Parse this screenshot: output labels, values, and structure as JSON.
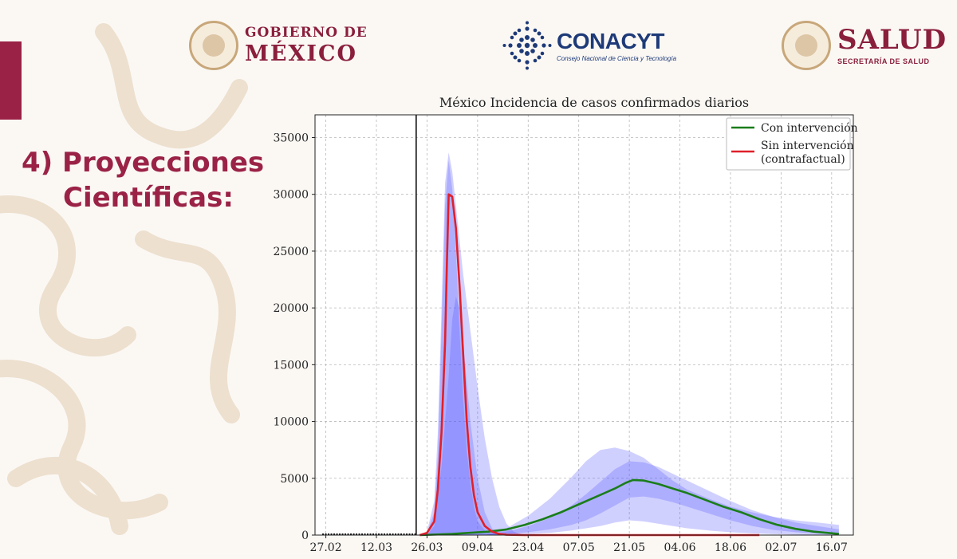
{
  "header": {
    "gob_line1": "GOBIERNO DE",
    "gob_line2": "MÉXICO",
    "conacyt_name": "CONACYT",
    "conacyt_sub": "Consejo Nacional de Ciencia y Tecnología",
    "salud_line1": "SALUD",
    "salud_line2": "SECRETARÍA DE SALUD"
  },
  "slide": {
    "title_line1": "4) Proyecciones",
    "title_line2": "Científicas:"
  },
  "colors": {
    "brand": "#9b2247",
    "con": "#1a7d1a",
    "sin": "#e0202a",
    "band": "#5555ff"
  },
  "chart_data": {
    "type": "line",
    "title": "México Incidencia de casos confirmados diarios",
    "x_ticks": [
      "27.02",
      "12.03",
      "26.03",
      "09.04",
      "23.04",
      "07.05",
      "21.05",
      "04.06",
      "18.06",
      "02.07",
      "16.07"
    ],
    "x_tick_days": [
      0,
      14,
      28,
      42,
      56,
      70,
      84,
      98,
      112,
      126,
      140
    ],
    "xlim": [
      -3,
      146
    ],
    "ylim": [
      0,
      37000
    ],
    "y_ticks": [
      0,
      5000,
      10000,
      15000,
      20000,
      25000,
      30000,
      35000
    ],
    "intervention_day": 25,
    "grid": true,
    "legend_position": "top-right",
    "series": [
      {
        "name": "Con intervención",
        "x": [
          26,
          35,
          45,
          50,
          55,
          60,
          65,
          70,
          75,
          80,
          83,
          85,
          88,
          92,
          96,
          100,
          105,
          110,
          115,
          120,
          125,
          130,
          135,
          142
        ],
        "y": [
          0,
          100,
          300,
          500,
          900,
          1400,
          2000,
          2700,
          3400,
          4100,
          4600,
          4850,
          4800,
          4500,
          4100,
          3700,
          3100,
          2500,
          2000,
          1400,
          900,
          550,
          300,
          100
        ]
      },
      {
        "name": "Sin intervención",
        "label_line1": "Sin intervención",
        "label_line2": "(contrafactual)",
        "x": [
          26,
          28,
          30,
          31,
          32,
          33,
          33.5,
          34,
          35,
          36,
          37,
          38,
          39,
          40,
          41,
          42,
          44,
          46,
          48,
          50,
          55,
          60,
          90,
          120
        ],
        "y": [
          0,
          200,
          1200,
          4000,
          9000,
          17000,
          24000,
          30000,
          29800,
          27000,
          22000,
          16000,
          10000,
          6000,
          3500,
          2000,
          800,
          300,
          100,
          30,
          0,
          0,
          0,
          0
        ]
      }
    ],
    "bands": [
      {
        "x": [
          26,
          28,
          30,
          31,
          32,
          33,
          34,
          35,
          36,
          37,
          38,
          40,
          42,
          44,
          46,
          48,
          50,
          52,
          55
        ],
        "lower": [
          0,
          0,
          0,
          0,
          0,
          0,
          0,
          0,
          0,
          0,
          0,
          0,
          0,
          0,
          0,
          0,
          0,
          0,
          0
        ],
        "upper": [
          0,
          300,
          3000,
          9000,
          20000,
          31000,
          33700,
          32000,
          29000,
          26000,
          23000,
          18000,
          13000,
          8500,
          5000,
          2500,
          1000,
          300,
          0
        ]
      },
      {
        "x": [
          26,
          28,
          30,
          31,
          32,
          33,
          34,
          35,
          36,
          37,
          38,
          39,
          40,
          41,
          42,
          44,
          46,
          48,
          50
        ],
        "lower": [
          0,
          0,
          0,
          0,
          0,
          0,
          0,
          0,
          0,
          0,
          0,
          0,
          0,
          0,
          0,
          0,
          0,
          0,
          0
        ],
        "upper": [
          0,
          200,
          2000,
          7000,
          18000,
          29000,
          33000,
          30500,
          25000,
          18000,
          12000,
          7500,
          4500,
          2500,
          1200,
          400,
          100,
          0,
          0
        ]
      },
      {
        "x": [
          28,
          30,
          32,
          34,
          35,
          36,
          37,
          38,
          40,
          42,
          44,
          46,
          48
        ],
        "lower": [
          0,
          0,
          0,
          0,
          0,
          0,
          0,
          0,
          0,
          0,
          0,
          0,
          0
        ],
        "upper": [
          0,
          800,
          6000,
          14000,
          19000,
          21000,
          20000,
          17000,
          10000,
          5000,
          2000,
          600,
          0
        ]
      },
      {
        "x": [
          44,
          50,
          56,
          62,
          68,
          72,
          76,
          80,
          84,
          88,
          92,
          96,
          100,
          106,
          112,
          118,
          124,
          130,
          136,
          142
        ],
        "lower": [
          0,
          50,
          100,
          200,
          400,
          600,
          800,
          1100,
          1300,
          1200,
          1000,
          800,
          600,
          400,
          250,
          150,
          80,
          40,
          20,
          0
        ],
        "upper": [
          0,
          600,
          1700,
          3200,
          5100,
          6500,
          7500,
          7700,
          7400,
          6800,
          5800,
          4800,
          4000,
          3200,
          2500,
          2000,
          1600,
          1300,
          1100,
          900
        ]
      },
      {
        "x": [
          44,
          50,
          56,
          62,
          68,
          72,
          76,
          80,
          84,
          88,
          92,
          96,
          100,
          106,
          112,
          118,
          124,
          130,
          136,
          142
        ],
        "lower": [
          0,
          100,
          250,
          500,
          900,
          1300,
          1900,
          2600,
          3300,
          3400,
          3200,
          2900,
          2500,
          1900,
          1300,
          800,
          450,
          250,
          120,
          40
        ],
        "upper": [
          0,
          300,
          800,
          1500,
          2600,
          3600,
          4700,
          5800,
          6500,
          6400,
          6000,
          5400,
          4800,
          3900,
          3000,
          2200,
          1600,
          1100,
          800,
          500
        ]
      }
    ]
  }
}
